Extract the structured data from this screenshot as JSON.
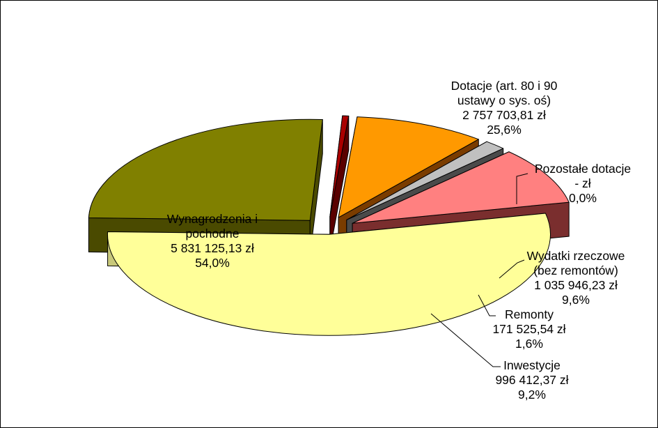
{
  "chart_data": {
    "type": "pie",
    "title": "",
    "style": "3d-exploded",
    "legend": "none",
    "slices": [
      {
        "key": "dotacje",
        "label": [
          "Dotacje (art. 80 i 90",
          "ustawy o sys. oś)"
        ],
        "amount": "2 757 703,81 zł",
        "percent": "25,6%",
        "value": 25.6,
        "color_top": "#808000",
        "color_side": "#4a4a00"
      },
      {
        "key": "pozostale",
        "label": [
          "Pozostałe dotacje"
        ],
        "amount": "- zł",
        "percent": "0,0%",
        "value": 0.0,
        "color_top": "#aa0000",
        "color_side": "#5a0000"
      },
      {
        "key": "wydatki",
        "label": [
          "Wydatki rzeczowe",
          "(bez remontów)"
        ],
        "amount": "1 035 946,23 zł",
        "percent": "9,6%",
        "value": 9.6,
        "color_top": "#ff9900",
        "color_side": "#7a3c00"
      },
      {
        "key": "remonty",
        "label": [
          "Remonty"
        ],
        "amount": "171 525,54 zł",
        "percent": "1,6%",
        "value": 1.6,
        "color_top": "#c0c0c0",
        "color_side": "#4a4a4a"
      },
      {
        "key": "inwestycje",
        "label": [
          "Inwestycje"
        ],
        "amount": "996 412,37 zł",
        "percent": "9,2%",
        "value": 9.2,
        "color_top": "#ff8080",
        "color_side": "#7a2e2e"
      },
      {
        "key": "wynagrodzenia",
        "label": [
          "Wynagrodzenia i",
          "pochodne"
        ],
        "amount": "5 831 125,13 zł",
        "percent": "54,0%",
        "value": 54.0,
        "color_top": "#ffff99",
        "color_side": "#c8c87a"
      }
    ]
  }
}
